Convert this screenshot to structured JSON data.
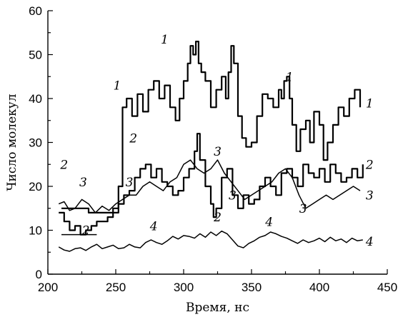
{
  "chart_data": {
    "type": "line",
    "xlabel": "Время, нс",
    "ylabel": "Число молекул",
    "xlim": [
      200,
      450
    ],
    "ylim": [
      0,
      60
    ],
    "xticks": [
      200,
      250,
      300,
      350,
      400,
      450
    ],
    "yticks": [
      0,
      10,
      20,
      30,
      40,
      50,
      60
    ],
    "series": [
      {
        "name": "1",
        "stepped": true,
        "x": [
          210,
          220,
          230,
          240,
          248,
          252,
          255,
          258,
          262,
          266,
          270,
          274,
          278,
          282,
          286,
          290,
          294,
          297,
          300,
          303,
          305,
          307,
          309,
          311,
          313,
          316,
          320,
          324,
          328,
          331,
          333,
          335,
          337,
          340,
          343,
          346,
          350,
          354,
          358,
          362,
          366,
          370,
          372,
          374,
          376,
          378,
          380,
          383,
          386,
          390,
          393,
          396,
          400,
          403,
          406,
          410,
          414,
          418,
          422,
          426,
          430
        ],
        "y": [
          15,
          15,
          14,
          14,
          15,
          20,
          38,
          40,
          36,
          41,
          37,
          42,
          44,
          40,
          43,
          38,
          35,
          40,
          44,
          48,
          52,
          50,
          53,
          48,
          46,
          44,
          38,
          42,
          45,
          40,
          46,
          52,
          48,
          36,
          31,
          29,
          30,
          36,
          41,
          40,
          38,
          42,
          40,
          44,
          45,
          40,
          34,
          28,
          33,
          35,
          30,
          37,
          34,
          26,
          30,
          34,
          38,
          36,
          40,
          42,
          38
        ]
      },
      {
        "name": "2",
        "stepped": true,
        "x": [
          208,
          212,
          216,
          220,
          224,
          228,
          232,
          236,
          240,
          244,
          248,
          252,
          256,
          260,
          264,
          268,
          272,
          276,
          280,
          284,
          288,
          292,
          296,
          300,
          304,
          308,
          310,
          312,
          316,
          320,
          322,
          324,
          328,
          332,
          336,
          340,
          344,
          348,
          352,
          356,
          360,
          364,
          368,
          372,
          376,
          380,
          384,
          388,
          392,
          396,
          400,
          404,
          408,
          412,
          416,
          420,
          424,
          428,
          432
        ],
        "y": [
          14,
          12,
          10,
          11,
          9,
          10,
          11,
          12,
          12,
          13,
          14,
          16,
          18,
          19,
          22,
          24,
          25,
          22,
          24,
          21,
          20,
          18,
          19,
          22,
          24,
          28,
          32,
          26,
          20,
          16,
          13,
          15,
          22,
          24,
          18,
          15,
          18,
          16,
          17,
          20,
          22,
          20,
          18,
          23,
          24,
          22,
          20,
          25,
          23,
          22,
          24,
          21,
          25,
          23,
          21,
          22,
          24,
          22,
          25
        ]
      },
      {
        "name": "3",
        "stepped": false,
        "x": [
          208,
          212,
          216,
          220,
          225,
          230,
          235,
          240,
          245,
          250,
          255,
          260,
          265,
          270,
          275,
          280,
          285,
          290,
          295,
          300,
          305,
          310,
          315,
          320,
          325,
          330,
          335,
          340,
          345,
          350,
          355,
          360,
          365,
          370,
          375,
          380,
          385,
          390,
          395,
          400,
          405,
          410,
          415,
          420,
          425,
          430
        ],
        "y": [
          16,
          16.5,
          14.5,
          15,
          17,
          16,
          14,
          15.5,
          14.5,
          16,
          17,
          18,
          18,
          20,
          21,
          20,
          19,
          21,
          22,
          25,
          26,
          24,
          23,
          24,
          26,
          23,
          21,
          19,
          17,
          18,
          19,
          20,
          21,
          23,
          24,
          22,
          18,
          15,
          16,
          17,
          18,
          17,
          18,
          19,
          20,
          19
        ]
      },
      {
        "name": "4",
        "stepped": false,
        "x": [
          208,
          212,
          216,
          220,
          224,
          228,
          232,
          236,
          240,
          244,
          248,
          252,
          256,
          260,
          264,
          268,
          272,
          276,
          280,
          284,
          288,
          292,
          296,
          300,
          304,
          308,
          312,
          316,
          320,
          324,
          328,
          332,
          336,
          340,
          344,
          348,
          352,
          356,
          360,
          364,
          368,
          372,
          376,
          380,
          384,
          388,
          392,
          396,
          400,
          404,
          408,
          412,
          416,
          420,
          424,
          428,
          432
        ],
        "y": [
          6.2,
          5.5,
          5.2,
          5.8,
          6.0,
          5.4,
          6.2,
          6.8,
          5.8,
          6.2,
          6.6,
          5.8,
          6.0,
          6.8,
          6.2,
          6.0,
          7.2,
          7.8,
          7.2,
          6.8,
          7.6,
          8.6,
          8.0,
          8.8,
          8.6,
          8.2,
          9.2,
          8.4,
          9.6,
          8.8,
          9.8,
          9.2,
          7.8,
          6.4,
          6.0,
          7.0,
          7.6,
          8.4,
          8.8,
          9.6,
          9.2,
          8.6,
          8.2,
          7.6,
          7.0,
          7.8,
          7.2,
          7.6,
          8.2,
          7.4,
          8.4,
          7.6,
          8.0,
          7.2,
          8.2,
          7.6,
          7.8
        ]
      }
    ],
    "annotations": [
      {
        "text": "1",
        "x": 286,
        "y": 52.5
      },
      {
        "text": "1",
        "x": 251,
        "y": 42
      },
      {
        "text": "1",
        "x": 378,
        "y": 44
      },
      {
        "text": "1",
        "x": 437,
        "y": 38
      },
      {
        "text": "2",
        "x": 263,
        "y": 30
      },
      {
        "text": "2",
        "x": 212,
        "y": 24
      },
      {
        "text": "2",
        "x": 437,
        "y": 24
      },
      {
        "text": "2",
        "x": 228,
        "y": 9
      },
      {
        "text": "2",
        "x": 325,
        "y": 12
      },
      {
        "text": "3",
        "x": 260,
        "y": 20
      },
      {
        "text": "3",
        "x": 226,
        "y": 20
      },
      {
        "text": "3",
        "x": 325,
        "y": 27
      },
      {
        "text": "3",
        "x": 336,
        "y": 17
      },
      {
        "text": "3",
        "x": 388,
        "y": 14
      },
      {
        "text": "3",
        "x": 437,
        "y": 17
      },
      {
        "text": "4",
        "x": 278,
        "y": 10
      },
      {
        "text": "4",
        "x": 363,
        "y": 11
      },
      {
        "text": "4",
        "x": 437,
        "y": 6.5
      }
    ],
    "legend_bracket": [
      {
        "x": [
          210,
          236
        ],
        "y": 9
      }
    ],
    "grid": false
  }
}
